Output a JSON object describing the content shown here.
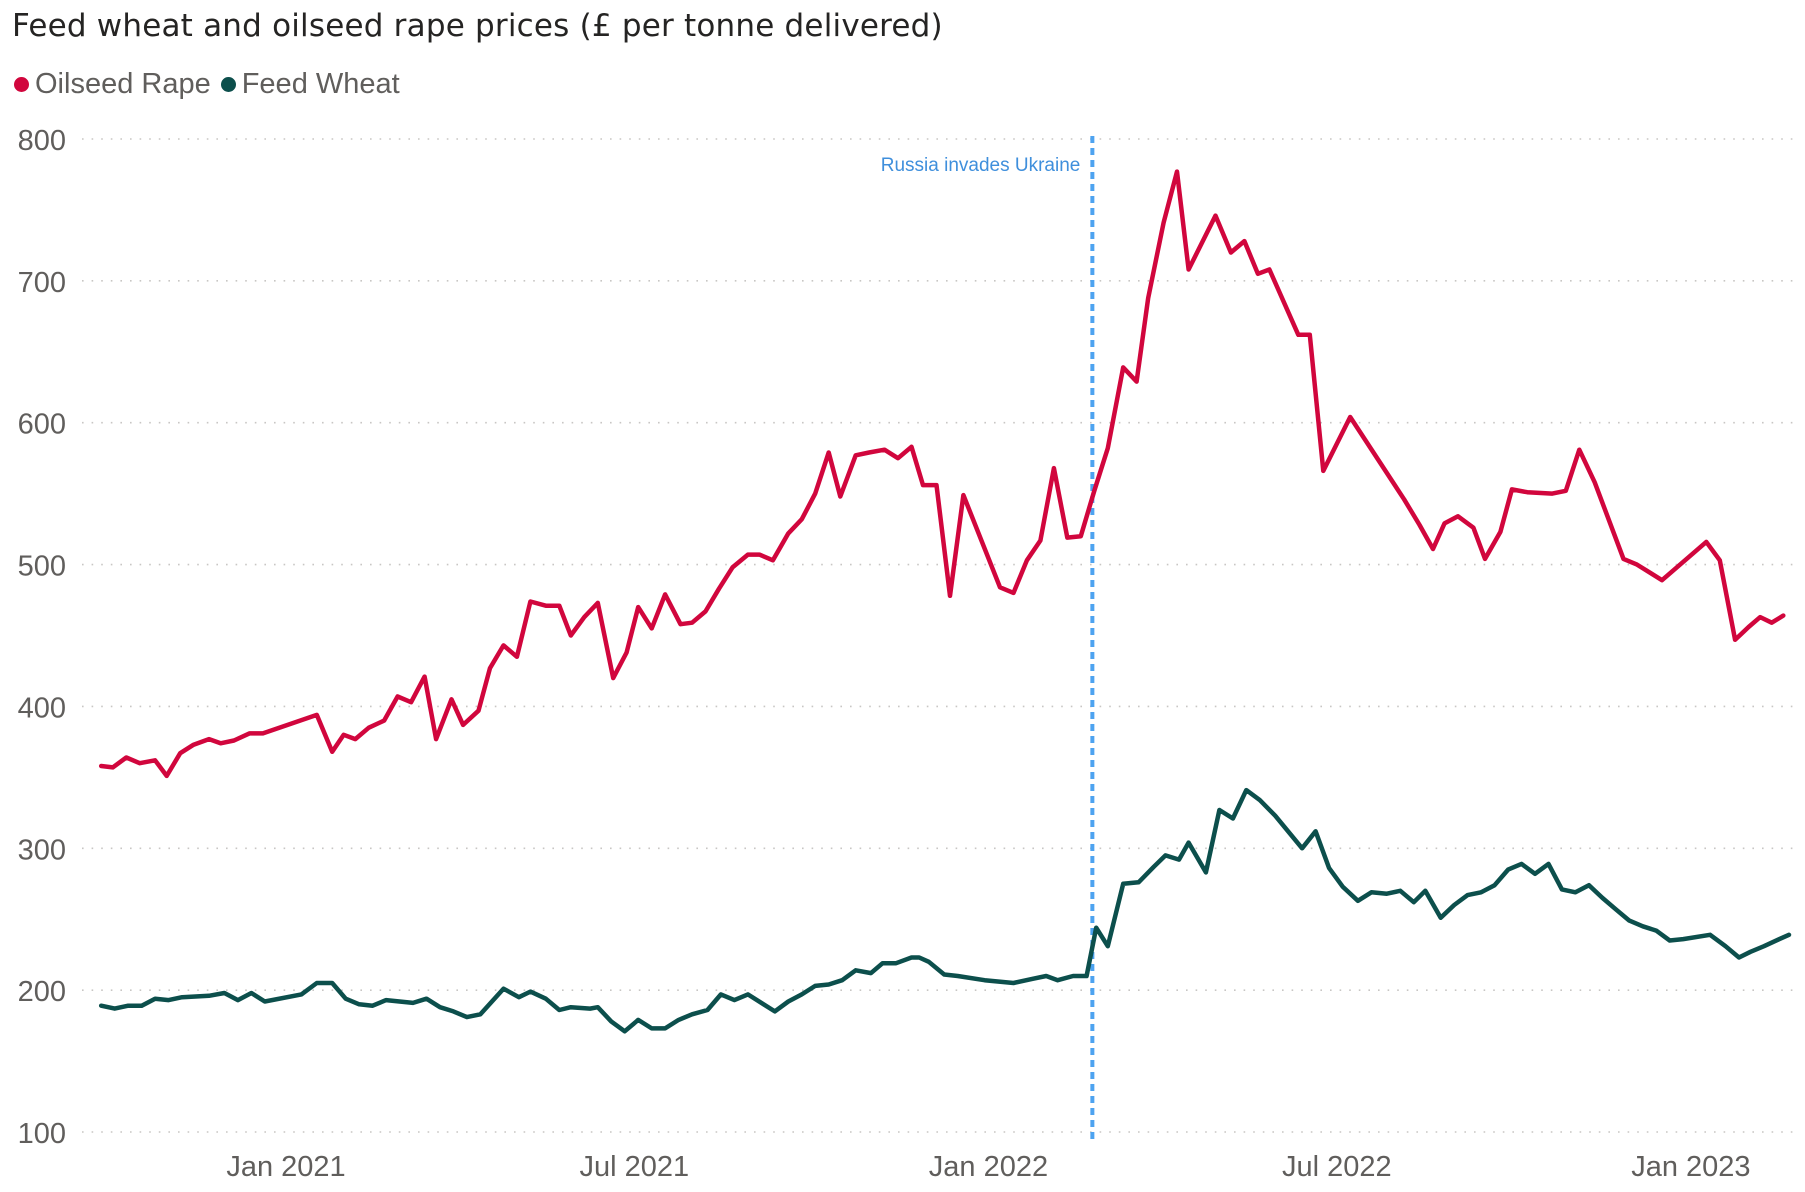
{
  "chart_data": {
    "type": "line",
    "title": "Feed wheat and oilseed rape prices (£ per tonne delivered)",
    "xlabel": "",
    "ylabel": "",
    "ylim": [
      100,
      800
    ],
    "yticks": [
      100,
      200,
      300,
      400,
      500,
      600,
      700,
      800
    ],
    "xlim": [
      "2020-09-20",
      "2023-02-28"
    ],
    "xticks": [
      {
        "date": "2021-01-01",
        "label": "Jan 2021"
      },
      {
        "date": "2021-07-01",
        "label": "Jul 2021"
      },
      {
        "date": "2022-01-01",
        "label": "Jan 2022"
      },
      {
        "date": "2022-07-01",
        "label": "Jul 2022"
      },
      {
        "date": "2023-01-01",
        "label": "Jan 2023"
      }
    ],
    "grid": "horizontal-dotted",
    "legend_position": "top-left",
    "annotation": {
      "date": "2022-02-24",
      "label": "Russia invades Ukraine",
      "color": "#4da3f0"
    },
    "series": [
      {
        "name": "Oilseed Rape",
        "color": "#d1063d",
        "points": [
          [
            "2020-09-27",
            358
          ],
          [
            "2020-10-03",
            357
          ],
          [
            "2020-10-10",
            364
          ],
          [
            "2020-10-17",
            360
          ],
          [
            "2020-10-25",
            362
          ],
          [
            "2020-10-31",
            351
          ],
          [
            "2020-11-07",
            367
          ],
          [
            "2020-11-14",
            373
          ],
          [
            "2020-11-22",
            377
          ],
          [
            "2020-11-28",
            374
          ],
          [
            "2020-12-05",
            376
          ],
          [
            "2020-12-13",
            381
          ],
          [
            "2020-12-20",
            381
          ],
          [
            "2021-01-17",
            394
          ],
          [
            "2021-01-25",
            368
          ],
          [
            "2021-01-31",
            380
          ],
          [
            "2021-02-06",
            377
          ],
          [
            "2021-02-13",
            385
          ],
          [
            "2021-02-21",
            390
          ],
          [
            "2021-02-28",
            407
          ],
          [
            "2021-03-07",
            403
          ],
          [
            "2021-03-14",
            421
          ],
          [
            "2021-03-20",
            377
          ],
          [
            "2021-03-28",
            405
          ],
          [
            "2021-04-03",
            387
          ],
          [
            "2021-04-11",
            397
          ],
          [
            "2021-04-17",
            427
          ],
          [
            "2021-04-24",
            443
          ],
          [
            "2021-05-01",
            435
          ],
          [
            "2021-05-08",
            474
          ],
          [
            "2021-05-16",
            471
          ],
          [
            "2021-05-23",
            471
          ],
          [
            "2021-05-29",
            450
          ],
          [
            "2021-06-05",
            463
          ],
          [
            "2021-06-12",
            473
          ],
          [
            "2021-06-20",
            420
          ],
          [
            "2021-06-27",
            438
          ],
          [
            "2021-07-03",
            470
          ],
          [
            "2021-07-10",
            455
          ],
          [
            "2021-07-17",
            479
          ],
          [
            "2021-07-25",
            458
          ],
          [
            "2021-07-31",
            459
          ],
          [
            "2021-08-07",
            467
          ],
          [
            "2021-08-14",
            483
          ],
          [
            "2021-08-21",
            498
          ],
          [
            "2021-08-29",
            507
          ],
          [
            "2021-09-04",
            507
          ],
          [
            "2021-09-11",
            503
          ],
          [
            "2021-09-19",
            522
          ],
          [
            "2021-09-26",
            532
          ],
          [
            "2021-10-03",
            550
          ],
          [
            "2021-10-10",
            579
          ],
          [
            "2021-10-16",
            548
          ],
          [
            "2021-10-24",
            577
          ],
          [
            "2021-10-31",
            579
          ],
          [
            "2021-11-08",
            581
          ],
          [
            "2021-11-15",
            575
          ],
          [
            "2021-11-22",
            583
          ],
          [
            "2021-11-28",
            556
          ],
          [
            "2021-12-05",
            556
          ],
          [
            "2021-12-12",
            478
          ],
          [
            "2021-12-19",
            549
          ],
          [
            "2022-01-07",
            484
          ],
          [
            "2022-01-14",
            480
          ],
          [
            "2022-01-21",
            503
          ],
          [
            "2022-01-28",
            517
          ],
          [
            "2022-02-04",
            568
          ],
          [
            "2022-02-11",
            519
          ],
          [
            "2022-02-18",
            520
          ],
          [
            "2022-02-25",
            552
          ],
          [
            "2022-03-04",
            582
          ],
          [
            "2022-03-12",
            639
          ],
          [
            "2022-03-19",
            629
          ],
          [
            "2022-03-25",
            688
          ],
          [
            "2022-04-02",
            741
          ],
          [
            "2022-04-09",
            777
          ],
          [
            "2022-04-15",
            708
          ],
          [
            "2022-04-29",
            746
          ],
          [
            "2022-05-07",
            720
          ],
          [
            "2022-05-14",
            728
          ],
          [
            "2022-05-21",
            705
          ],
          [
            "2022-05-27",
            708
          ],
          [
            "2022-06-11",
            662
          ],
          [
            "2022-06-17",
            662
          ],
          [
            "2022-06-24",
            566
          ],
          [
            "2022-07-08",
            604
          ],
          [
            "2022-08-05",
            546
          ],
          [
            "2022-08-13",
            528
          ],
          [
            "2022-08-20",
            511
          ],
          [
            "2022-08-26",
            529
          ],
          [
            "2022-09-02",
            534
          ],
          [
            "2022-09-10",
            526
          ],
          [
            "2022-09-16",
            504
          ],
          [
            "2022-09-24",
            523
          ],
          [
            "2022-09-30",
            553
          ],
          [
            "2022-10-08",
            551
          ],
          [
            "2022-10-21",
            550
          ],
          [
            "2022-10-28",
            552
          ],
          [
            "2022-11-04",
            581
          ],
          [
            "2022-11-12",
            558
          ],
          [
            "2022-11-27",
            504
          ],
          [
            "2022-12-04",
            500
          ],
          [
            "2022-12-17",
            489
          ],
          [
            "2023-01-09",
            516
          ],
          [
            "2023-01-16",
            503
          ],
          [
            "2023-01-24",
            447
          ],
          [
            "2023-01-31",
            456
          ],
          [
            "2023-02-06",
            463
          ],
          [
            "2023-02-12",
            459
          ],
          [
            "2023-02-18",
            464
          ]
        ]
      },
      {
        "name": "Feed Wheat",
        "color": "#0c4f4c",
        "points": [
          [
            "2020-09-27",
            189
          ],
          [
            "2020-10-04",
            187
          ],
          [
            "2020-10-11",
            189
          ],
          [
            "2020-10-18",
            189
          ],
          [
            "2020-10-25",
            194
          ],
          [
            "2020-11-01",
            193
          ],
          [
            "2020-11-08",
            195
          ],
          [
            "2020-11-22",
            196
          ],
          [
            "2020-11-30",
            198
          ],
          [
            "2020-12-07",
            193
          ],
          [
            "2020-12-14",
            198
          ],
          [
            "2020-12-21",
            192
          ],
          [
            "2021-01-09",
            197
          ],
          [
            "2021-01-17",
            205
          ],
          [
            "2021-01-25",
            205
          ],
          [
            "2021-02-01",
            194
          ],
          [
            "2021-02-08",
            190
          ],
          [
            "2021-02-15",
            189
          ],
          [
            "2021-02-22",
            193
          ],
          [
            "2021-03-01",
            192
          ],
          [
            "2021-03-08",
            191
          ],
          [
            "2021-03-15",
            194
          ],
          [
            "2021-03-22",
            188
          ],
          [
            "2021-03-29",
            185
          ],
          [
            "2021-04-05",
            181
          ],
          [
            "2021-04-12",
            183
          ],
          [
            "2021-04-24",
            201
          ],
          [
            "2021-05-02",
            195
          ],
          [
            "2021-05-08",
            199
          ],
          [
            "2021-05-16",
            194
          ],
          [
            "2021-05-23",
            186
          ],
          [
            "2021-05-29",
            188
          ],
          [
            "2021-06-08",
            187
          ],
          [
            "2021-06-12",
            188
          ],
          [
            "2021-06-19",
            178
          ],
          [
            "2021-06-26",
            171
          ],
          [
            "2021-07-03",
            179
          ],
          [
            "2021-07-10",
            173
          ],
          [
            "2021-07-17",
            173
          ],
          [
            "2021-07-24",
            179
          ],
          [
            "2021-07-31",
            183
          ],
          [
            "2021-08-08",
            186
          ],
          [
            "2021-08-15",
            197
          ],
          [
            "2021-08-22",
            193
          ],
          [
            "2021-08-29",
            197
          ],
          [
            "2021-09-12",
            185
          ],
          [
            "2021-09-19",
            192
          ],
          [
            "2021-09-26",
            197
          ],
          [
            "2021-10-03",
            203
          ],
          [
            "2021-10-10",
            204
          ],
          [
            "2021-10-17",
            207
          ],
          [
            "2021-10-24",
            214
          ],
          [
            "2021-11-01",
            212
          ],
          [
            "2021-11-07",
            219
          ],
          [
            "2021-11-14",
            219
          ],
          [
            "2021-11-22",
            223
          ],
          [
            "2021-11-26",
            223
          ],
          [
            "2021-12-01",
            220
          ],
          [
            "2021-12-09",
            211
          ],
          [
            "2021-12-16",
            210
          ],
          [
            "2021-12-30",
            207
          ],
          [
            "2022-01-14",
            205
          ],
          [
            "2022-01-24",
            208
          ],
          [
            "2022-01-31",
            210
          ],
          [
            "2022-02-06",
            207
          ],
          [
            "2022-02-14",
            210
          ],
          [
            "2022-02-21",
            210
          ],
          [
            "2022-02-26",
            244
          ],
          [
            "2022-03-04",
            231
          ],
          [
            "2022-03-12",
            275
          ],
          [
            "2022-03-20",
            276
          ],
          [
            "2022-03-28",
            287
          ],
          [
            "2022-04-03",
            295
          ],
          [
            "2022-04-10",
            292
          ],
          [
            "2022-04-15",
            304
          ],
          [
            "2022-04-24",
            283
          ],
          [
            "2022-05-01",
            327
          ],
          [
            "2022-05-08",
            321
          ],
          [
            "2022-05-15",
            341
          ],
          [
            "2022-05-22",
            334
          ],
          [
            "2022-05-30",
            323
          ],
          [
            "2022-06-13",
            300
          ],
          [
            "2022-06-20",
            312
          ],
          [
            "2022-06-27",
            286
          ],
          [
            "2022-07-04",
            273
          ],
          [
            "2022-07-12",
            263
          ],
          [
            "2022-07-19",
            269
          ],
          [
            "2022-07-27",
            268
          ],
          [
            "2022-08-03",
            270
          ],
          [
            "2022-08-10",
            262
          ],
          [
            "2022-08-16",
            270
          ],
          [
            "2022-08-24",
            251
          ],
          [
            "2022-08-31",
            260
          ],
          [
            "2022-09-07",
            267
          ],
          [
            "2022-09-14",
            269
          ],
          [
            "2022-09-21",
            274
          ],
          [
            "2022-09-28",
            285
          ],
          [
            "2022-10-05",
            289
          ],
          [
            "2022-10-12",
            282
          ],
          [
            "2022-10-19",
            289
          ],
          [
            "2022-10-26",
            271
          ],
          [
            "2022-11-02",
            269
          ],
          [
            "2022-11-09",
            274
          ],
          [
            "2022-11-16",
            265
          ],
          [
            "2022-11-23",
            257
          ],
          [
            "2022-11-30",
            249
          ],
          [
            "2022-12-07",
            245
          ],
          [
            "2022-12-14",
            242
          ],
          [
            "2022-12-21",
            235
          ],
          [
            "2022-12-28",
            236
          ],
          [
            "2023-01-11",
            239
          ],
          [
            "2023-01-19",
            231
          ],
          [
            "2023-01-26",
            223
          ],
          [
            "2023-02-01",
            227
          ],
          [
            "2023-02-08",
            231
          ],
          [
            "2023-02-16",
            236
          ],
          [
            "2023-02-21",
            239
          ]
        ]
      }
    ]
  }
}
